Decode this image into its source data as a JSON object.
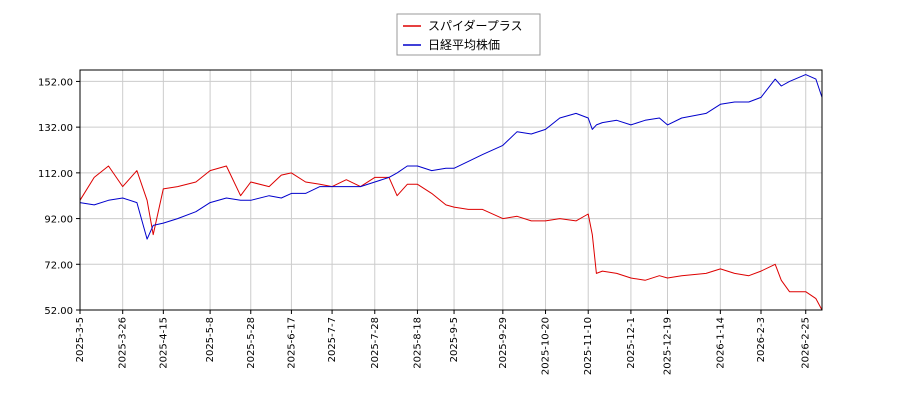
{
  "chart_data": {
    "type": "line",
    "title": "",
    "xlabel": "",
    "ylabel": "",
    "ylim": [
      52,
      157
    ],
    "y_ticks": [
      "52.00",
      "72.00",
      "92.00",
      "112.00",
      "132.00",
      "152.00"
    ],
    "x_ticks": [
      "2025-3-5",
      "2025-3-26",
      "2025-4-15",
      "2025-5-8",
      "2025-5-28",
      "2025-6-17",
      "2025-7-7",
      "2025-7-28",
      "2025-8-18",
      "2025-9-5",
      "2025-9-29",
      "2025-10-20",
      "2025-11-10",
      "2025-12-1",
      "2025-12-19",
      "2026-1-14",
      "2026-2-3",
      "2026-2-25"
    ],
    "grid": true,
    "legend_position": "top-center",
    "series": [
      {
        "name": "スパイダープラス",
        "color": "#dd0000",
        "x": [
          "2025-3-5",
          "2025-3-12",
          "2025-3-19",
          "2025-3-26",
          "2025-4-2",
          "2025-4-7",
          "2025-4-10",
          "2025-4-15",
          "2025-4-22",
          "2025-5-1",
          "2025-5-8",
          "2025-5-16",
          "2025-5-23",
          "2025-5-28",
          "2025-6-6",
          "2025-6-12",
          "2025-6-17",
          "2025-6-24",
          "2025-7-1",
          "2025-7-7",
          "2025-7-14",
          "2025-7-21",
          "2025-7-28",
          "2025-8-4",
          "2025-8-8",
          "2025-8-13",
          "2025-8-18",
          "2025-8-25",
          "2025-9-1",
          "2025-9-5",
          "2025-9-12",
          "2025-9-19",
          "2025-9-29",
          "2025-10-6",
          "2025-10-13",
          "2025-10-20",
          "2025-10-27",
          "2025-11-4",
          "2025-11-10",
          "2025-11-12",
          "2025-11-14",
          "2025-11-17",
          "2025-11-24",
          "2025-12-1",
          "2025-12-8",
          "2025-12-15",
          "2025-12-19",
          "2025-12-26",
          "2026-1-7",
          "2026-1-14",
          "2026-1-21",
          "2026-1-28",
          "2026-2-3",
          "2026-2-10",
          "2026-2-13",
          "2026-2-17",
          "2026-2-25",
          "2026-3-2",
          "2026-3-5"
        ],
        "y": [
          100,
          110,
          115,
          106,
          113,
          100,
          85,
          105,
          106,
          108,
          113,
          115,
          102,
          108,
          106,
          111,
          112,
          108,
          107,
          106,
          109,
          106,
          110,
          110,
          102,
          107,
          107,
          103,
          98,
          97,
          96,
          96,
          92,
          93,
          91,
          91,
          92,
          91,
          94,
          85,
          68,
          69,
          68,
          66,
          65,
          67,
          66,
          67,
          68,
          70,
          68,
          67,
          69,
          72,
          65,
          60,
          60,
          57,
          52
        ]
      },
      {
        "name": "日経平均株価",
        "color": "#0000cc",
        "x": [
          "2025-3-5",
          "2025-3-12",
          "2025-3-19",
          "2025-3-26",
          "2025-4-2",
          "2025-4-7",
          "2025-4-10",
          "2025-4-15",
          "2025-4-22",
          "2025-5-1",
          "2025-5-8",
          "2025-5-16",
          "2025-5-23",
          "2025-5-28",
          "2025-6-6",
          "2025-6-12",
          "2025-6-17",
          "2025-6-24",
          "2025-7-1",
          "2025-7-7",
          "2025-7-14",
          "2025-7-21",
          "2025-7-28",
          "2025-8-4",
          "2025-8-8",
          "2025-8-13",
          "2025-8-18",
          "2025-8-25",
          "2025-9-1",
          "2025-9-5",
          "2025-9-12",
          "2025-9-19",
          "2025-9-29",
          "2025-10-6",
          "2025-10-13",
          "2025-10-20",
          "2025-10-27",
          "2025-11-4",
          "2025-11-10",
          "2025-11-12",
          "2025-11-14",
          "2025-11-17",
          "2025-11-24",
          "2025-12-1",
          "2025-12-8",
          "2025-12-15",
          "2025-12-19",
          "2025-12-26",
          "2026-1-7",
          "2026-1-14",
          "2026-1-21",
          "2026-1-28",
          "2026-2-3",
          "2026-2-10",
          "2026-2-13",
          "2026-2-17",
          "2026-2-25",
          "2026-3-2",
          "2026-3-5"
        ],
        "y": [
          99,
          98,
          100,
          101,
          99,
          83,
          89,
          90,
          92,
          95,
          99,
          101,
          100,
          100,
          102,
          101,
          103,
          103,
          106,
          106,
          106,
          106,
          108,
          110,
          112,
          115,
          115,
          113,
          114,
          114,
          117,
          120,
          124,
          130,
          129,
          131,
          136,
          138,
          136,
          131,
          133,
          134,
          135,
          133,
          135,
          136,
          133,
          136,
          138,
          142,
          143,
          143,
          145,
          153,
          150,
          152,
          155,
          153,
          145
        ]
      }
    ]
  }
}
